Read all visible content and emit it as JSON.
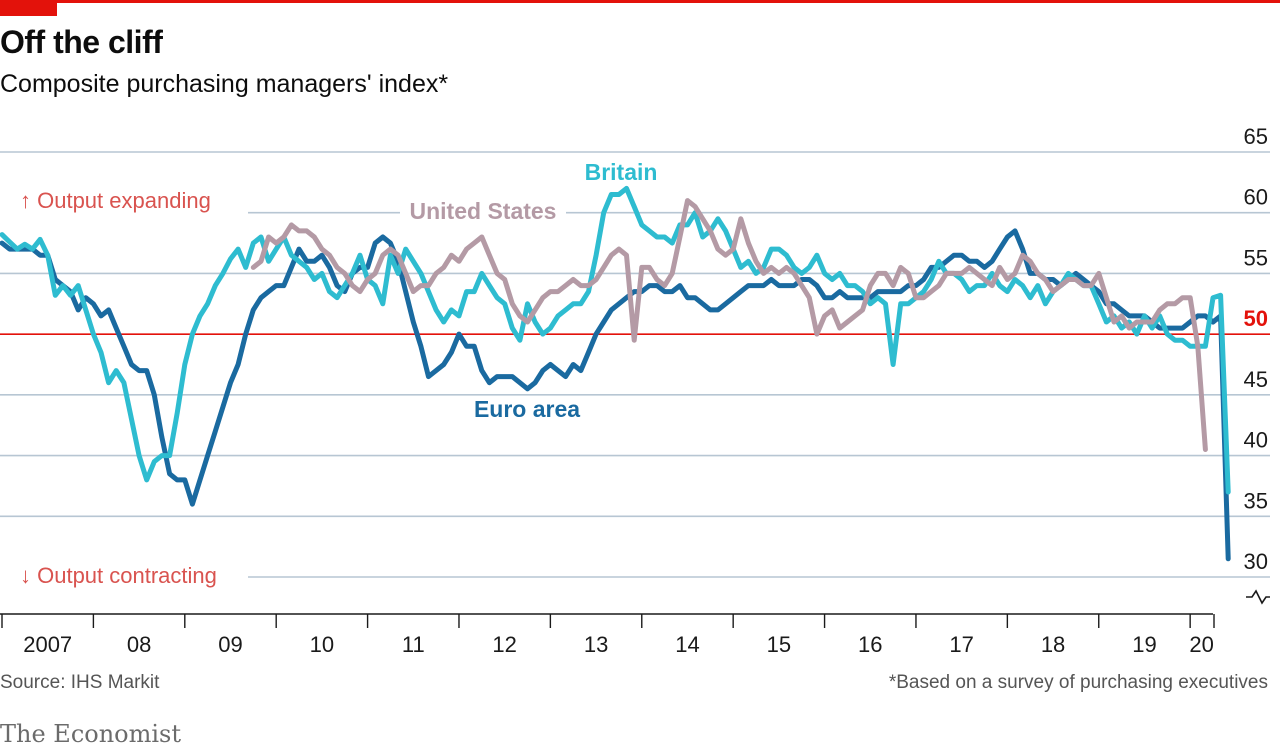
{
  "header": {
    "title": "Off the cliff",
    "subtitle": "Composite purchasing managers' index*"
  },
  "footer": {
    "source": "Source: IHS Markit",
    "footnote": "*Based on a survey of purchasing executives",
    "brand": "The Economist"
  },
  "colors": {
    "britain": "#2ebcd0",
    "euro": "#1a6aa0",
    "us": "#b49aa5",
    "reference": "#e3120b",
    "annotation": "#d9534f",
    "grid": "#b7c6d3"
  },
  "chart_data": {
    "type": "line",
    "title": "Off the cliff",
    "subtitle": "Composite purchasing managers' index*",
    "ylim": [
      30,
      65
    ],
    "y_ticks": [
      65,
      60,
      55,
      50,
      45,
      40,
      35,
      30
    ],
    "reference_line": 50,
    "x_start": "2007-01",
    "x_end": "2020-04",
    "x_tick_labels": [
      "2007",
      "08",
      "09",
      "10",
      "11",
      "12",
      "13",
      "14",
      "15",
      "16",
      "17",
      "18",
      "19",
      "20"
    ],
    "annotations": {
      "up": "↑ Output expanding",
      "down": "↓ Output contracting"
    },
    "series": [
      {
        "name": "Britain",
        "color_key": "britain",
        "start": "2007-01",
        "values": [
          58.2,
          57.6,
          57.0,
          57.4,
          57.0,
          57.8,
          56.5,
          53.2,
          54.0,
          53.2,
          54.0,
          52.0,
          50.0,
          48.5,
          46.0,
          47.0,
          46.0,
          43.0,
          40.0,
          38.0,
          39.5,
          40.0,
          40.0,
          43.5,
          47.5,
          50.0,
          51.5,
          52.5,
          54.0,
          55.0,
          56.2,
          57.0,
          55.5,
          57.5,
          58.0,
          56.0,
          57.0,
          58.0,
          56.5,
          56.0,
          55.5,
          54.5,
          55.0,
          53.5,
          53.0,
          54.0,
          55.0,
          56.5,
          54.5,
          54.0,
          52.5,
          56.5,
          55.0,
          57.0,
          56.0,
          55.0,
          53.5,
          52.0,
          51.0,
          52.0,
          51.5,
          53.5,
          53.5,
          55.0,
          54.0,
          53.0,
          52.5,
          50.5,
          49.5,
          52.5,
          51.0,
          50.0,
          50.5,
          51.5,
          52.0,
          52.5,
          52.5,
          53.5,
          56.5,
          60.0,
          61.5,
          61.5,
          62.0,
          60.5,
          59.0,
          58.5,
          58.0,
          58.0,
          57.5,
          59.0,
          59.0,
          60.0,
          58.0,
          58.5,
          59.5,
          58.5,
          57.0,
          55.5,
          56.0,
          55.0,
          55.5,
          57.0,
          57.0,
          56.5,
          55.5,
          55.0,
          55.5,
          56.5,
          55.0,
          54.5,
          55.0,
          54.0,
          54.0,
          53.5,
          52.5,
          53.0,
          52.5,
          47.5,
          52.5,
          52.5,
          53.0,
          53.5,
          54.5,
          56.0,
          55.0,
          55.0,
          54.5,
          53.5,
          54.0,
          54.0,
          55.0,
          54.0,
          53.5,
          54.5,
          54.0,
          53.0,
          54.0,
          52.5,
          53.5,
          54.0,
          55.0,
          54.5,
          54.0,
          54.0,
          52.5,
          51.0,
          51.5,
          50.5,
          51.0,
          50.0,
          51.5,
          50.5,
          51.5,
          50.0,
          49.5,
          49.5,
          49.0,
          49.0,
          49.0,
          53.0,
          53.2,
          37.0
        ]
      },
      {
        "name": "Euro area",
        "color_key": "euro",
        "start": "2007-01",
        "values": [
          57.5,
          57.0,
          57.0,
          57.0,
          57.0,
          56.5,
          56.5,
          54.5,
          54.0,
          53.5,
          52.0,
          53.0,
          52.5,
          51.5,
          52.0,
          50.5,
          49.0,
          47.5,
          47.0,
          47.0,
          45.0,
          41.5,
          38.5,
          38.0,
          38.0,
          36.0,
          38.0,
          40.0,
          42.0,
          44.0,
          46.0,
          47.5,
          50.0,
          52.0,
          53.0,
          53.5,
          54.0,
          54.0,
          55.5,
          57.0,
          56.0,
          56.0,
          56.5,
          55.5,
          54.0,
          53.5,
          55.0,
          55.5,
          55.5,
          57.5,
          58.0,
          57.5,
          56.0,
          53.5,
          51.0,
          49.0,
          46.5,
          47.0,
          47.5,
          48.5,
          50.0,
          49.0,
          49.0,
          47.0,
          46.0,
          46.5,
          46.5,
          46.5,
          46.0,
          45.5,
          46.0,
          47.0,
          47.5,
          47.0,
          46.5,
          47.5,
          47.0,
          48.5,
          50.0,
          51.0,
          52.0,
          52.5,
          53.0,
          53.5,
          53.5,
          54.0,
          54.0,
          53.5,
          53.5,
          54.0,
          53.0,
          53.0,
          52.5,
          52.0,
          52.0,
          52.5,
          53.0,
          53.5,
          54.0,
          54.0,
          54.0,
          54.5,
          54.0,
          54.0,
          54.0,
          54.5,
          54.5,
          54.0,
          53.0,
          53.0,
          53.5,
          53.0,
          53.0,
          53.0,
          53.0,
          53.5,
          53.5,
          53.5,
          53.5,
          54.0,
          54.0,
          54.5,
          55.5,
          55.5,
          56.0,
          56.5,
          56.5,
          56.0,
          56.0,
          55.5,
          56.0,
          57.0,
          58.0,
          58.5,
          57.0,
          55.0,
          55.0,
          54.5,
          54.5,
          54.0,
          54.5,
          55.0,
          54.5,
          54.0,
          53.5,
          52.5,
          52.5,
          52.0,
          51.5,
          51.5,
          51.5,
          51.0,
          50.5,
          50.5,
          50.5,
          50.5,
          51.0,
          51.5,
          51.5,
          51.0,
          51.5,
          31.5
        ]
      },
      {
        "name": "United States",
        "color_key": "us",
        "start": "2009-10",
        "values": [
          55.5,
          56.0,
          58.0,
          57.5,
          58.0,
          59.0,
          58.5,
          58.5,
          58.0,
          57.0,
          56.5,
          55.5,
          55.0,
          54.0,
          53.5,
          54.5,
          55.0,
          56.5,
          57.0,
          56.5,
          55.0,
          53.5,
          54.0,
          54.0,
          55.0,
          55.5,
          56.5,
          56.0,
          57.0,
          57.5,
          58.0,
          56.5,
          55.0,
          54.5,
          52.5,
          51.5,
          51.0,
          52.0,
          53.0,
          53.5,
          53.5,
          54.0,
          54.5,
          54.0,
          54.0,
          54.5,
          55.5,
          56.5,
          57.0,
          56.5,
          49.5,
          55.5,
          55.5,
          54.5,
          54.0,
          55.0,
          58.0,
          61.0,
          60.5,
          59.5,
          58.5,
          57.0,
          56.5,
          57.0,
          59.5,
          57.5,
          56.0,
          55.0,
          55.5,
          55.0,
          55.5,
          55.0,
          54.0,
          53.0,
          50.0,
          51.5,
          52.0,
          50.5,
          51.0,
          51.5,
          52.0,
          54.0,
          55.0,
          55.0,
          54.0,
          55.5,
          55.0,
          53.0,
          53.0,
          53.5,
          54.0,
          55.0,
          55.0,
          55.0,
          55.5,
          55.0,
          54.5,
          54.0,
          55.5,
          54.5,
          55.0,
          56.5,
          56.0,
          55.0,
          54.5,
          53.5,
          54.0,
          54.5,
          54.5,
          54.0,
          54.0,
          55.0,
          53.0,
          51.0,
          51.5,
          50.5,
          51.0,
          51.0,
          51.0,
          52.0,
          52.5,
          52.5,
          53.0,
          53.0,
          49.0,
          40.5
        ]
      }
    ],
    "series_labels": {
      "britain": "Britain",
      "us": "United States",
      "euro": "Euro area"
    }
  }
}
